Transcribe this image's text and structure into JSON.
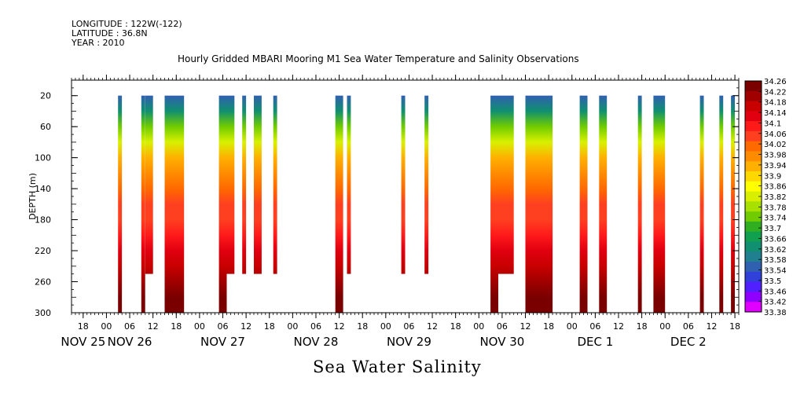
{
  "header": {
    "longitude": "LONGITUDE : 122W(-122)",
    "latitude": "LATITUDE : 36.8N",
    "year": "YEAR : 2010"
  },
  "chart_data": {
    "type": "heatmap",
    "title": "Hourly Gridded MBARI Mooring M1 Sea Water Temperature and Salinity Observations",
    "bottom_title": "Sea Water Salinity",
    "ylabel": "DEPTH (m)",
    "xlabel": "",
    "x_range": [
      "2010-11-25T15:00",
      "2010-12-02T19:00"
    ],
    "y_range": [
      300,
      0
    ],
    "y_ticks": [
      20,
      60,
      100,
      140,
      180,
      220,
      260,
      300
    ],
    "x_hour_ticks": [
      {
        "t": "2010-11-25T18:00",
        "label": "18"
      },
      {
        "t": "2010-11-26T00:00",
        "label": "00"
      },
      {
        "t": "2010-11-26T06:00",
        "label": "06"
      },
      {
        "t": "2010-11-26T12:00",
        "label": "12"
      },
      {
        "t": "2010-11-26T18:00",
        "label": "18"
      },
      {
        "t": "2010-11-27T00:00",
        "label": "00"
      },
      {
        "t": "2010-11-27T06:00",
        "label": "06"
      },
      {
        "t": "2010-11-27T12:00",
        "label": "12"
      },
      {
        "t": "2010-11-27T18:00",
        "label": "18"
      },
      {
        "t": "2010-11-28T00:00",
        "label": "00"
      },
      {
        "t": "2010-11-28T06:00",
        "label": "06"
      },
      {
        "t": "2010-11-28T12:00",
        "label": "12"
      },
      {
        "t": "2010-11-28T18:00",
        "label": "18"
      },
      {
        "t": "2010-11-29T00:00",
        "label": "00"
      },
      {
        "t": "2010-11-29T06:00",
        "label": "06"
      },
      {
        "t": "2010-11-29T12:00",
        "label": "12"
      },
      {
        "t": "2010-11-29T18:00",
        "label": "18"
      },
      {
        "t": "2010-11-30T00:00",
        "label": "00"
      },
      {
        "t": "2010-11-30T06:00",
        "label": "06"
      },
      {
        "t": "2010-11-30T12:00",
        "label": "12"
      },
      {
        "t": "2010-11-30T18:00",
        "label": "18"
      },
      {
        "t": "2010-12-01T00:00",
        "label": "00"
      },
      {
        "t": "2010-12-01T06:00",
        "label": "06"
      },
      {
        "t": "2010-12-01T12:00",
        "label": "12"
      },
      {
        "t": "2010-12-01T18:00",
        "label": "18"
      },
      {
        "t": "2010-12-02T00:00",
        "label": "00"
      },
      {
        "t": "2010-12-02T06:00",
        "label": "06"
      },
      {
        "t": "2010-12-02T12:00",
        "label": "12"
      },
      {
        "t": "2010-12-02T18:00",
        "label": "18"
      }
    ],
    "x_day_labels": [
      {
        "t": "2010-11-25T18:00",
        "label": "NOV 25"
      },
      {
        "t": "2010-11-26T06:00",
        "label": "NOV 26"
      },
      {
        "t": "2010-11-27T06:00",
        "label": "NOV 27"
      },
      {
        "t": "2010-11-28T06:00",
        "label": "NOV 28"
      },
      {
        "t": "2010-11-29T06:00",
        "label": "NOV 29"
      },
      {
        "t": "2010-11-30T06:00",
        "label": "NOV 30"
      },
      {
        "t": "2010-12-01T06:00",
        "label": "DEC  1"
      },
      {
        "t": "2010-12-02T06:00",
        "label": "DEC  2"
      }
    ],
    "colorbar_levels": [
      "34.26",
      "34.22",
      "34.18",
      "34.14",
      "34.1",
      "34.06",
      "34.02",
      "33.98",
      "33.94",
      "33.9",
      "33.86",
      "33.82",
      "33.78",
      "33.74",
      "33.7",
      "33.66",
      "33.62",
      "33.58",
      "33.54",
      "33.5",
      "33.46",
      "33.42",
      "33.38"
    ],
    "colorbar_colors": [
      "#7a0000",
      "#a00000",
      "#c80000",
      "#e00010",
      "#ff1a1a",
      "#ff4020",
      "#ff6a00",
      "#ff8c00",
      "#ffb000",
      "#ffd800",
      "#ffff00",
      "#d8f000",
      "#a8e000",
      "#70cc00",
      "#30b020",
      "#10a050",
      "#109070",
      "#208090",
      "#3060b0",
      "#3040d8",
      "#5020ff",
      "#9000ff",
      "#e000ff"
    ],
    "column_salinity_profile": [
      {
        "depth": 20,
        "value": 33.53
      },
      {
        "depth": 40,
        "value": 33.6
      },
      {
        "depth": 60,
        "value": 33.7
      },
      {
        "depth": 80,
        "value": 33.8
      },
      {
        "depth": 100,
        "value": 33.9
      },
      {
        "depth": 120,
        "value": 33.96
      },
      {
        "depth": 140,
        "value": 34.0
      },
      {
        "depth": 160,
        "value": 34.03
      },
      {
        "depth": 180,
        "value": 34.05
      },
      {
        "depth": 200,
        "value": 34.08
      },
      {
        "depth": 220,
        "value": 34.12
      },
      {
        "depth": 240,
        "value": 34.16
      },
      {
        "depth": 260,
        "value": 34.2
      },
      {
        "depth": 280,
        "value": 34.22
      },
      {
        "depth": 300,
        "value": 34.24
      }
    ],
    "observation_segments": [
      {
        "start": "2010-11-26T03:00",
        "end": "2010-11-26T04:00",
        "bottom_depth": 300
      },
      {
        "start": "2010-11-26T09:00",
        "end": "2010-11-26T10:00",
        "bottom_depth": 300
      },
      {
        "start": "2010-11-26T10:00",
        "end": "2010-11-26T12:00",
        "bottom_depth": 250
      },
      {
        "start": "2010-11-26T15:00",
        "end": "2010-11-26T20:00",
        "bottom_depth": 300
      },
      {
        "start": "2010-11-27T05:00",
        "end": "2010-11-27T07:00",
        "bottom_depth": 300
      },
      {
        "start": "2010-11-27T07:00",
        "end": "2010-11-27T09:00",
        "bottom_depth": 250
      },
      {
        "start": "2010-11-27T11:00",
        "end": "2010-11-27T12:00",
        "bottom_depth": 250
      },
      {
        "start": "2010-11-27T14:00",
        "end": "2010-11-27T16:00",
        "bottom_depth": 250
      },
      {
        "start": "2010-11-27T19:00",
        "end": "2010-11-27T20:00",
        "bottom_depth": 250
      },
      {
        "start": "2010-11-28T11:00",
        "end": "2010-11-28T13:00",
        "bottom_depth": 300
      },
      {
        "start": "2010-11-28T14:00",
        "end": "2010-11-28T15:00",
        "bottom_depth": 250
      },
      {
        "start": "2010-11-29T04:00",
        "end": "2010-11-29T05:00",
        "bottom_depth": 250
      },
      {
        "start": "2010-11-29T10:00",
        "end": "2010-11-29T11:00",
        "bottom_depth": 250
      },
      {
        "start": "2010-11-30T03:00",
        "end": "2010-11-30T05:00",
        "bottom_depth": 300
      },
      {
        "start": "2010-11-30T05:00",
        "end": "2010-11-30T09:00",
        "bottom_depth": 250
      },
      {
        "start": "2010-11-30T12:00",
        "end": "2010-11-30T19:00",
        "bottom_depth": 300
      },
      {
        "start": "2010-12-01T02:00",
        "end": "2010-12-01T04:00",
        "bottom_depth": 300
      },
      {
        "start": "2010-12-01T07:00",
        "end": "2010-12-01T09:00",
        "bottom_depth": 300
      },
      {
        "start": "2010-12-01T17:00",
        "end": "2010-12-01T18:00",
        "bottom_depth": 300
      },
      {
        "start": "2010-12-01T21:00",
        "end": "2010-12-02T00:00",
        "bottom_depth": 300
      },
      {
        "start": "2010-12-02T09:00",
        "end": "2010-12-02T10:00",
        "bottom_depth": 300
      },
      {
        "start": "2010-12-02T14:00",
        "end": "2010-12-02T15:00",
        "bottom_depth": 300
      },
      {
        "start": "2010-12-02T17:00",
        "end": "2010-12-02T18:00",
        "bottom_depth": 300
      }
    ]
  }
}
